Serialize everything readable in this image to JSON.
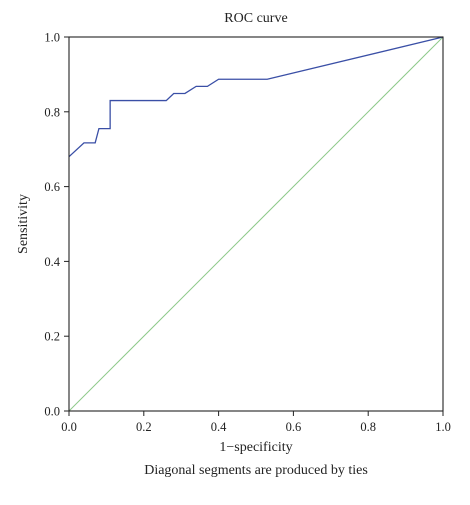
{
  "chart_data": {
    "type": "line",
    "title": "ROC curve",
    "xlabel": "1−specificity",
    "ylabel": "Sensitivity",
    "footnote": "Diagonal segments are produced by ties",
    "xlim": [
      0.0,
      1.0
    ],
    "ylim": [
      0.0,
      1.0
    ],
    "xticks": [
      0.0,
      0.2,
      0.4,
      0.6,
      0.8,
      1.0
    ],
    "yticks": [
      0.0,
      0.2,
      0.4,
      0.6,
      0.8,
      1.0
    ],
    "xtick_labels": [
      "0.0",
      "0.2",
      "0.4",
      "0.6",
      "0.8",
      "1.0"
    ],
    "ytick_labels": [
      "0.0",
      "0.2",
      "0.4",
      "0.6",
      "0.8",
      "1.0"
    ],
    "grid": false,
    "legend": "none",
    "series": [
      {
        "color": "#3a4fa6",
        "x": [
          0.0,
          0.04,
          0.07,
          0.08,
          0.1,
          0.11,
          0.11,
          0.26,
          0.28,
          0.29,
          0.31,
          0.34,
          0.37,
          0.4,
          0.41,
          0.53,
          1.0
        ],
        "y": [
          0.68,
          0.717,
          0.717,
          0.755,
          0.755,
          0.755,
          0.83,
          0.83,
          0.849,
          0.849,
          0.849,
          0.868,
          0.868,
          0.887,
          0.887,
          0.887,
          1.0
        ]
      },
      {
        "color": "#8dc98a",
        "x": [
          0.0,
          1.0
        ],
        "y": [
          0.0,
          1.0
        ]
      }
    ]
  }
}
